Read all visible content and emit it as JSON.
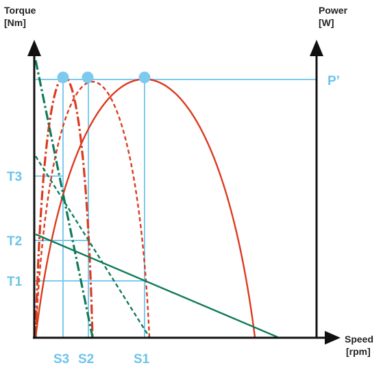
{
  "colors": {
    "axis": "#111111",
    "power_curve": "#dc3a1e",
    "torque_line": "#0f7a5a",
    "guide": "#7ccbee",
    "label": "#6cc4ea",
    "text": "#222222"
  },
  "axes": {
    "left_title_1": "Torque",
    "left_title_2": "[Nm]",
    "right_title_1": "Power",
    "right_title_2": "[W]",
    "x_title_1": "Speed",
    "x_title_2": "[rpm]"
  },
  "labels": {
    "p_prime": "P’",
    "t3": "T3",
    "t2": "T2",
    "t1": "T1",
    "s3": "S3",
    "s2": "S2",
    "s1": "S1"
  },
  "curves": [
    {
      "id": "curve-1",
      "style": "solid",
      "description_visible": false
    },
    {
      "id": "curve-2",
      "style": "dashed",
      "description_visible": false
    },
    {
      "id": "curve-3",
      "style": "dash-dot",
      "description_visible": false
    }
  ]
}
